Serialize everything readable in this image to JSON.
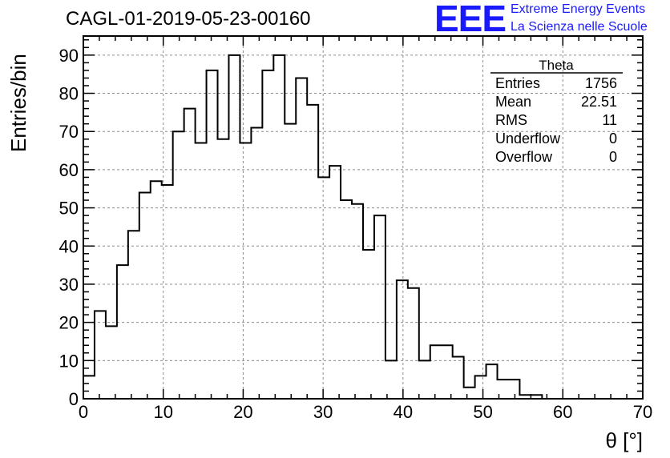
{
  "header": {
    "title": "CAGL-01-2019-05-23-00160",
    "logo_text": "EEE",
    "logo_line1": "Extreme Energy Events",
    "logo_line2": "La Scienza nelle Scuole"
  },
  "colors": {
    "logo": "#1a1aff",
    "histogram": "#000000",
    "grid": "#8c8c8c"
  },
  "chart_data": {
    "type": "bar",
    "style": "step-histogram",
    "xlabel": "θ [°]",
    "ylabel": "Entries/bin",
    "xlim": [
      0,
      70
    ],
    "ylim": [
      0,
      95
    ],
    "grid": true,
    "bin_width": 1.4,
    "x_start": 0,
    "xticks": [
      0,
      10,
      20,
      30,
      40,
      50,
      60,
      70
    ],
    "yticks": [
      0,
      10,
      20,
      30,
      40,
      50,
      60,
      70,
      80,
      90
    ],
    "values": [
      6,
      23,
      19,
      35,
      44,
      54,
      57,
      56,
      70,
      76,
      67,
      86,
      68,
      90,
      67,
      71,
      86,
      90,
      72,
      84,
      77,
      58,
      61,
      52,
      51,
      39,
      48,
      10,
      31,
      29,
      10,
      14,
      14,
      11,
      3,
      6,
      9,
      5,
      5,
      1,
      1,
      0,
      0,
      0,
      0,
      0,
      0,
      0,
      0,
      0
    ],
    "stats_box": {
      "title": "Theta",
      "rows": [
        {
          "label": "Entries",
          "value": "1756"
        },
        {
          "label": "Mean",
          "value": "22.51"
        },
        {
          "label": "RMS",
          "value": "11"
        },
        {
          "label": "Underflow",
          "value": "0"
        },
        {
          "label": "Overflow",
          "value": "0"
        }
      ]
    }
  }
}
